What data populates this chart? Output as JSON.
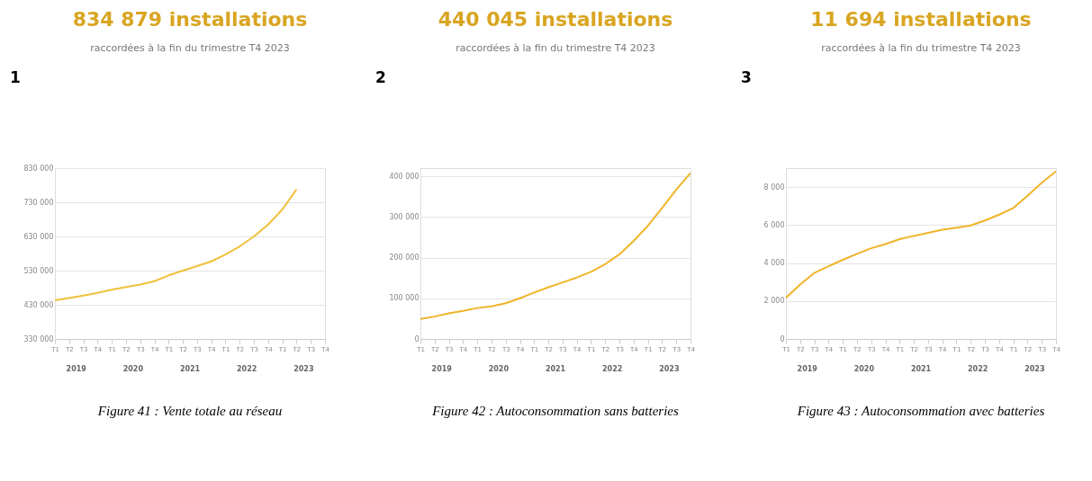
{
  "chart_data": [
    {
      "type": "line",
      "title": "834 879 installations",
      "subtitle": "raccordées à la fin du trimestre T4 2023",
      "annotations": [
        "1",
        "2019",
        "2020",
        "2021",
        "2022",
        "2023",
        "Figure 41 : Vente totale au réseau"
      ],
      "categories": [
        "T1",
        "T2",
        "T3",
        "T4",
        "T1",
        "T2",
        "T3",
        "T4",
        "T1",
        "T2",
        "T3",
        "T4",
        "T1",
        "T2",
        "T3",
        "T4",
        "T1",
        "T2",
        "T3",
        "T4"
      ],
      "series": [
        {
          "color": "#f0c03c",
          "values": [
            443000,
            450000,
            457000,
            465000,
            474000,
            482000,
            489000,
            499000,
            516000,
            530000,
            543000,
            557000,
            577000,
            601000,
            630000,
            665000,
            709000,
            768000,
            null,
            null
          ]
        }
      ],
      "ylim": [
        330000,
        830000
      ],
      "yticks": [
        {
          "value": 330000,
          "label": "330 000"
        },
        {
          "value": 430000,
          "label": "430 000"
        },
        {
          "value": 530000,
          "label": "530 000"
        },
        {
          "value": 630000,
          "label": "630 000"
        },
        {
          "value": 730000,
          "label": "730 000"
        },
        {
          "value": 830000,
          "label": "830 000"
        }
      ],
      "grid": "y",
      "marker": "none",
      "line_style": "solid"
    },
    {
      "type": "line",
      "title": "440 045 installations",
      "subtitle": "raccordées à la fin du trimestre T4 2023",
      "annotations": [
        "2",
        "2019",
        "2020",
        "2021",
        "2022",
        "2023",
        "Figure 42 : Autoconsommation sans batteries"
      ],
      "categories": [
        "T1",
        "T2",
        "T3",
        "T4",
        "T1",
        "T2",
        "T3",
        "T4",
        "T1",
        "T2",
        "T3",
        "T4",
        "T1",
        "T2",
        "T3",
        "T4",
        "T1",
        "T2",
        "T3",
        "T4"
      ],
      "series": [
        {
          "color": "#f0b429",
          "values": [
            49000,
            55000,
            63000,
            69000,
            76000,
            80000,
            88000,
            100000,
            114000,
            127000,
            139000,
            151000,
            165000,
            184000,
            208000,
            241000,
            278000,
            322000,
            367000,
            408000
          ]
        }
      ],
      "ylim": [
        0,
        420000
      ],
      "yticks": [
        0,
        {
          "value": 100000,
          "label": "100 000"
        },
        {
          "value": 200000,
          "label": "200 000"
        },
        {
          "value": 300000,
          "label": "300 000"
        },
        {
          "value": 400000,
          "label": "400 000"
        }
      ],
      "grid": "y",
      "marker": "none",
      "line_style": "solid"
    },
    {
      "type": "line",
      "title": "11 694 installations",
      "subtitle": "raccordées à la fin du trimestre T4 2023",
      "annotations": [
        "3",
        "2019",
        "2020",
        "2021",
        "2022",
        "2023",
        "Figure 43 : Autoconsommation avec batteries"
      ],
      "categories": [
        "T1",
        "T2",
        "T3",
        "T4",
        "T1",
        "T2",
        "T3",
        "T4",
        "T1",
        "T2",
        "T3",
        "T4",
        "T1",
        "T2",
        "T3",
        "T4",
        "T1",
        "T2",
        "T3",
        "T4"
      ],
      "series": [
        {
          "color": "#f0b429",
          "values": [
            2170,
            2870,
            3480,
            3830,
            4170,
            4480,
            4780,
            5000,
            5260,
            5430,
            5590,
            5760,
            5860,
            5980,
            6240,
            6550,
            6900,
            7540,
            8230,
            8830
          ]
        }
      ],
      "ylim": [
        0,
        9000
      ],
      "yticks": [
        0,
        {
          "value": 2000,
          "label": "2 000"
        },
        {
          "value": 4000,
          "label": "4 000"
        },
        {
          "value": 6000,
          "label": "6 000"
        },
        {
          "value": 8000,
          "label": "8 000"
        }
      ],
      "grid": "y",
      "marker": "none",
      "line_style": "solid"
    }
  ]
}
